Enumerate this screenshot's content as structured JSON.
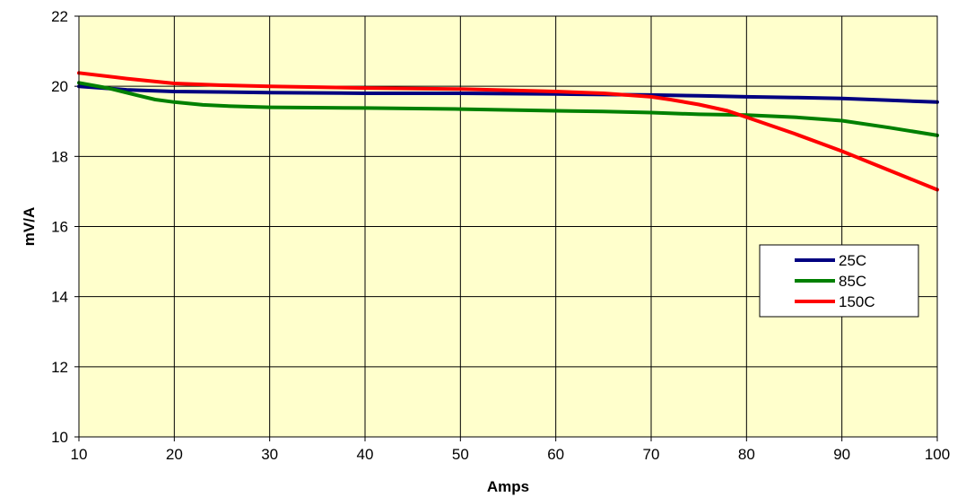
{
  "chart_data": {
    "type": "line",
    "title": "",
    "xlabel": "Amps",
    "ylabel": "mV/A",
    "xlim": [
      10,
      100
    ],
    "ylim": [
      10,
      22
    ],
    "xticks": [
      10,
      20,
      30,
      40,
      50,
      60,
      70,
      80,
      90,
      100
    ],
    "yticks": [
      10,
      12,
      14,
      16,
      18,
      20,
      22
    ],
    "grid": true,
    "legend_position": "right",
    "plot_background": "#ffffcc",
    "series": [
      {
        "name": "25C",
        "color": "#000080",
        "x": [
          10,
          15,
          20,
          30,
          40,
          50,
          60,
          70,
          75,
          80,
          85,
          90,
          95,
          100
        ],
        "y": [
          20.0,
          19.9,
          19.85,
          19.82,
          19.8,
          19.8,
          19.78,
          19.75,
          19.73,
          19.7,
          19.68,
          19.65,
          19.6,
          19.55
        ]
      },
      {
        "name": "85C",
        "color": "#008000",
        "x": [
          10,
          13,
          16,
          18,
          20,
          23,
          26,
          30,
          40,
          50,
          60,
          65,
          70,
          75,
          80,
          85,
          90,
          95,
          100
        ],
        "y": [
          20.1,
          19.95,
          19.75,
          19.62,
          19.55,
          19.47,
          19.43,
          19.4,
          19.38,
          19.35,
          19.3,
          19.28,
          19.25,
          19.2,
          19.18,
          19.12,
          19.02,
          18.82,
          18.6
        ]
      },
      {
        "name": "150C",
        "color": "#ff0000",
        "x": [
          10,
          15,
          20,
          25,
          30,
          40,
          50,
          60,
          65,
          70,
          72,
          75,
          78,
          80,
          85,
          90,
          95,
          100
        ],
        "y": [
          20.38,
          20.22,
          20.08,
          20.03,
          20.0,
          19.95,
          19.92,
          19.85,
          19.8,
          19.7,
          19.62,
          19.48,
          19.3,
          19.12,
          18.65,
          18.15,
          17.6,
          17.05
        ]
      }
    ]
  }
}
